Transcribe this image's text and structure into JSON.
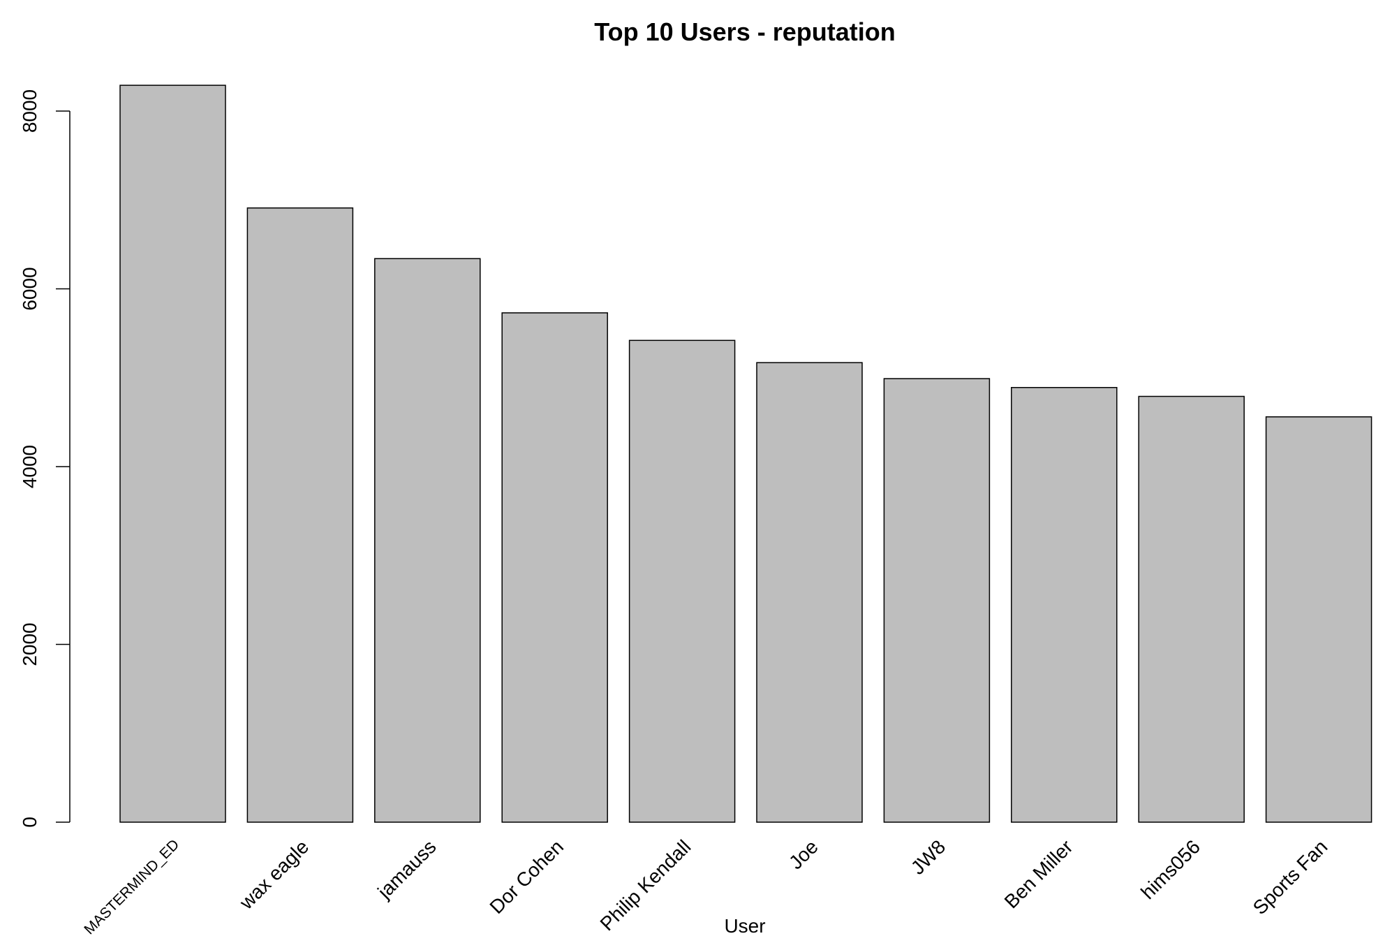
{
  "chart_data": {
    "type": "bar",
    "title": "Top 10 Users - reputation",
    "xlabel": "User",
    "ylabel": "",
    "categories": [
      "MASTERMIND_ED",
      "wax eagle",
      "jamauss",
      "Dor Cohen",
      "Philip Kendall",
      "Joe",
      "JW8",
      "Ben Miller",
      "hims056",
      "Sports Fan"
    ],
    "values": [
      8290,
      6910,
      6340,
      5730,
      5420,
      5170,
      4990,
      4890,
      4790,
      4560
    ],
    "ylim": [
      0,
      8000
    ],
    "yticks": [
      0,
      2000,
      4000,
      6000,
      8000
    ],
    "grid": false,
    "legend": "none",
    "colors": {
      "bar_fill": "#bebebe",
      "bar_stroke": "#000000",
      "axis": "#000000",
      "text": "#000000"
    }
  }
}
